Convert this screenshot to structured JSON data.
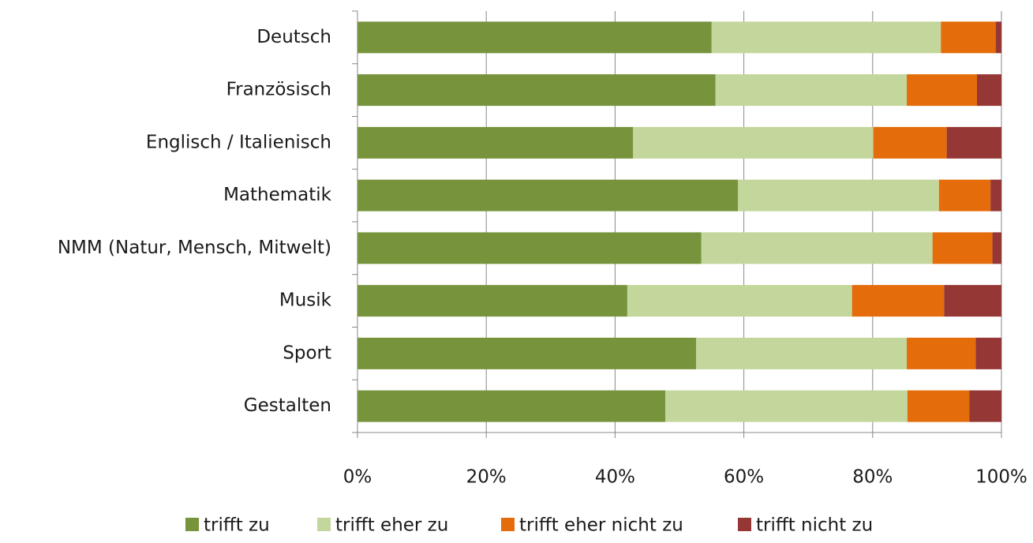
{
  "chart_data": {
    "type": "stacked_barh",
    "categories": [
      "Deutsch",
      "Französisch",
      "Englisch / Italienisch",
      "Mathematik",
      "NMM (Natur, Mensch, Mitwelt)",
      "Musik",
      "Sport",
      "Gestalten"
    ],
    "series": [
      {
        "name": "trifft zu",
        "color": "#77933c",
        "values": [
          55.0,
          55.6,
          42.8,
          59.1,
          53.4,
          41.9,
          52.6,
          47.8
        ]
      },
      {
        "name": "trifft eher zu",
        "color": "#c3d69b",
        "values": [
          35.6,
          29.7,
          37.3,
          31.2,
          35.9,
          34.9,
          32.7,
          37.6
        ]
      },
      {
        "name": "trifft eher nicht zu",
        "color": "#e46c0a",
        "values": [
          8.5,
          10.9,
          11.4,
          8.0,
          9.3,
          14.3,
          10.7,
          9.6
        ]
      },
      {
        "name": "trifft nicht zu",
        "color": "#953735",
        "values": [
          0.9,
          3.8,
          8.5,
          1.7,
          1.4,
          8.9,
          4.0,
          5.0
        ]
      }
    ],
    "xlim": [
      0,
      100
    ],
    "xticks": [
      {
        "value": 0,
        "label": "0%"
      },
      {
        "value": 20,
        "label": "20%"
      },
      {
        "value": 40,
        "label": "40%"
      },
      {
        "value": 60,
        "label": "60%"
      },
      {
        "value": 80,
        "label": "80%"
      },
      {
        "value": 100,
        "label": "100%"
      }
    ],
    "grid": true,
    "legend": "bottom"
  }
}
